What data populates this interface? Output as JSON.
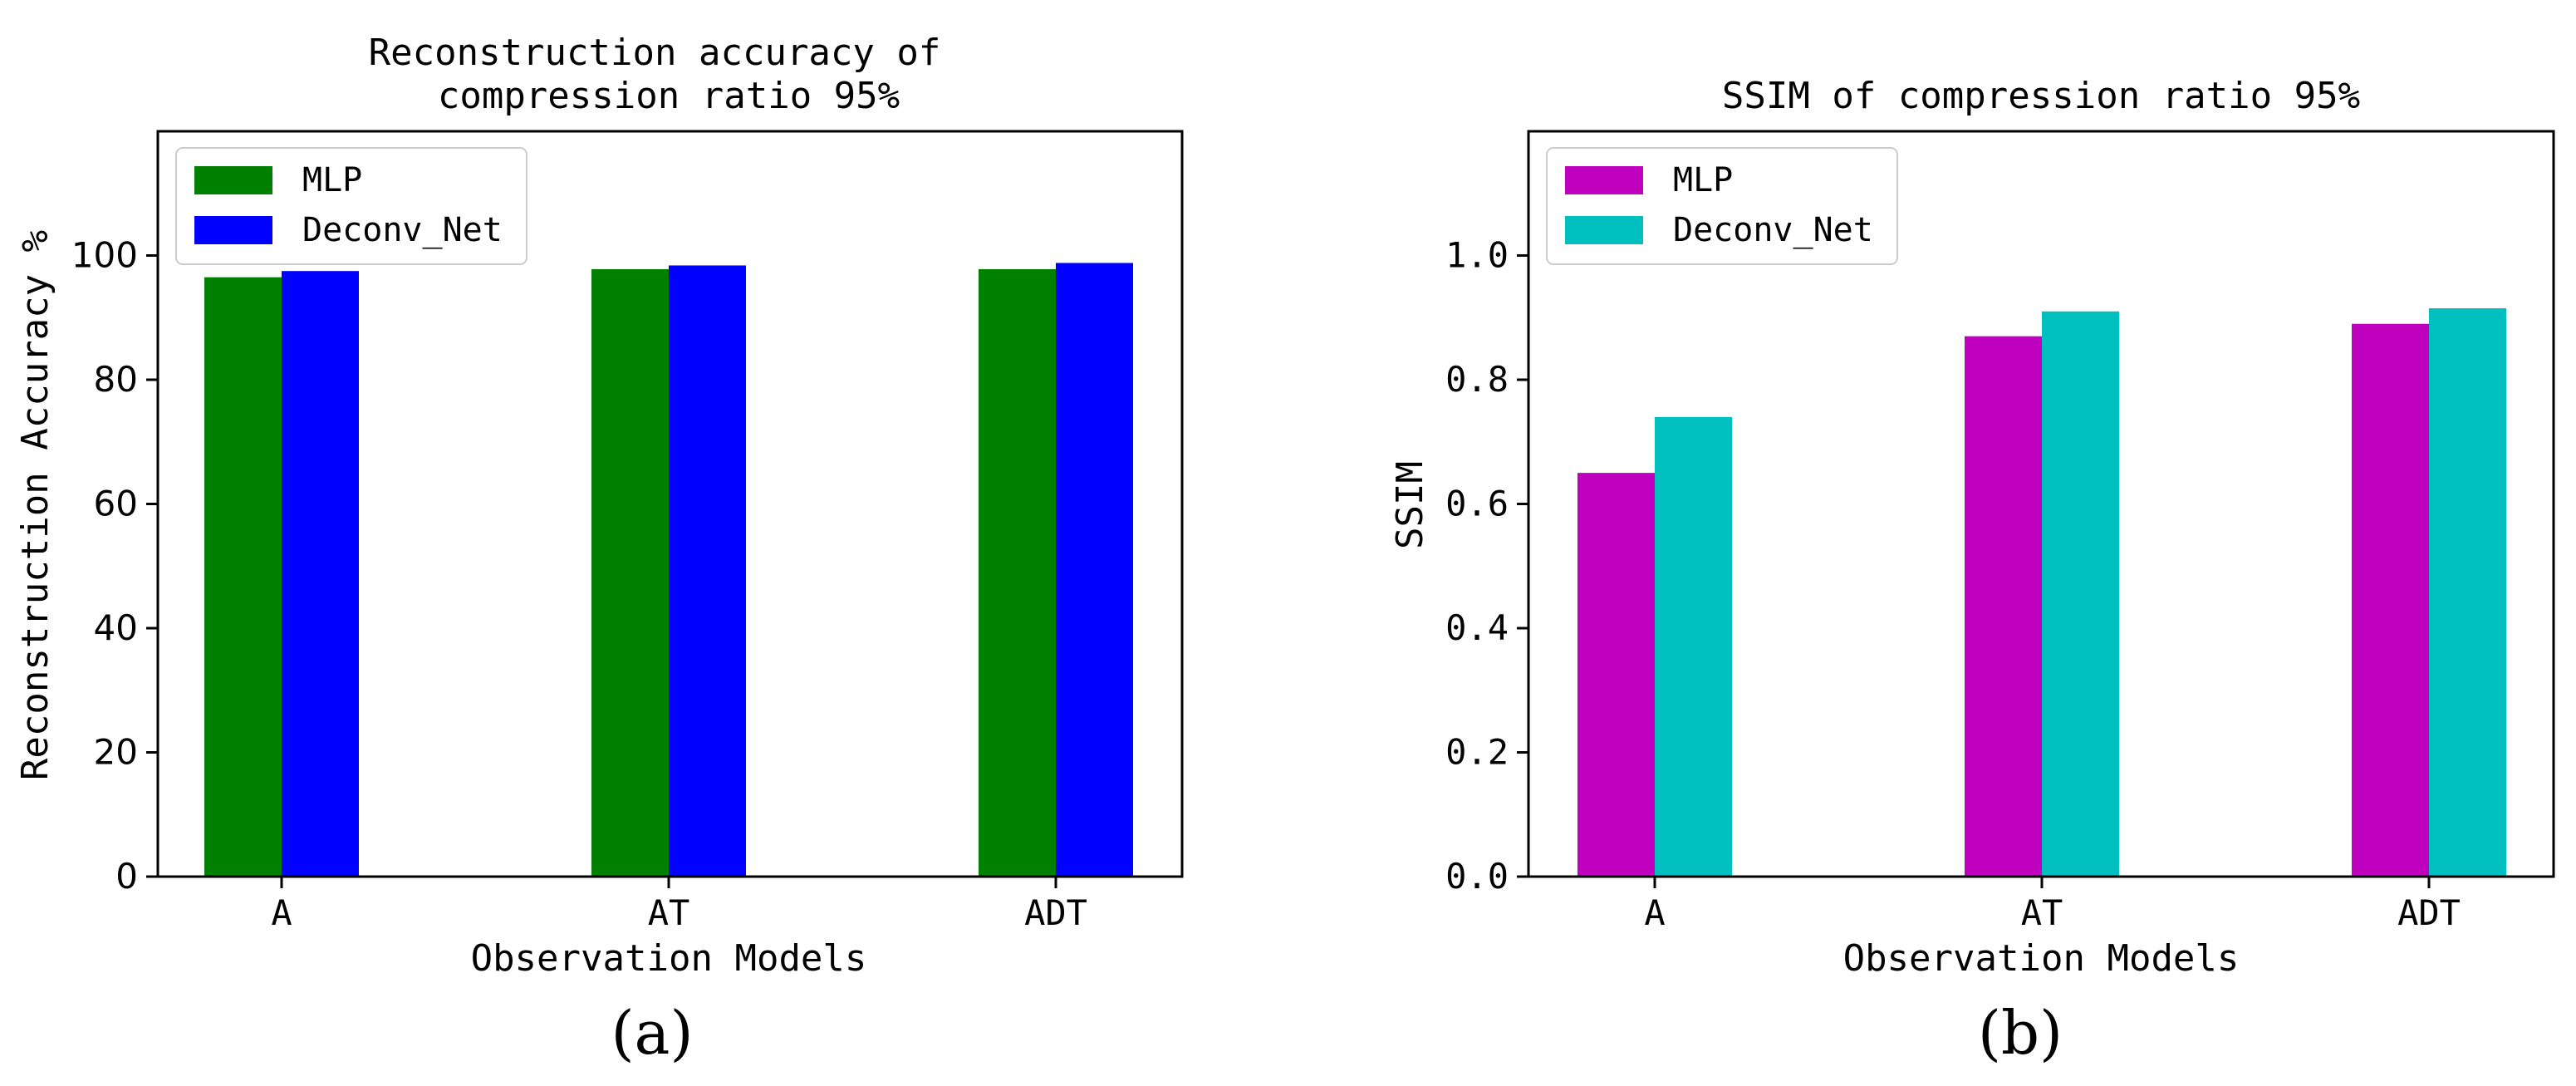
{
  "chart_data": [
    {
      "type": "bar",
      "title_lines": [
        "Reconstruction accuracy of",
        "compression ratio 95%"
      ],
      "xlabel": "Observation Models",
      "ylabel": "Reconstruction Accuracy %",
      "categories": [
        "A",
        "AT",
        "ADT"
      ],
      "series": [
        {
          "name": "MLP",
          "color": "#008000",
          "values": [
            96.5,
            97.8,
            97.8
          ]
        },
        {
          "name": "Deconv_Net",
          "color": "#0000ff",
          "values": [
            97.5,
            98.4,
            98.8
          ]
        }
      ],
      "ylim": [
        0,
        120
      ],
      "yticks": [
        0,
        20,
        40,
        60,
        80,
        100
      ],
      "ytick_labels": [
        "0",
        "20",
        "40",
        "60",
        "80",
        "100"
      ],
      "legend": "upper-left",
      "grid": false,
      "panel_label": "(a)"
    },
    {
      "type": "bar",
      "title_lines": [
        "SSIM of compression ratio 95%"
      ],
      "xlabel": "Observation Models",
      "ylabel": "SSIM",
      "categories": [
        "A",
        "AT",
        "ADT"
      ],
      "series": [
        {
          "name": "MLP",
          "color": "#bf00bf",
          "values": [
            0.65,
            0.87,
            0.89
          ]
        },
        {
          "name": "Deconv_Net",
          "color": "#00bfbf",
          "values": [
            0.74,
            0.91,
            0.915
          ]
        }
      ],
      "ylim": [
        0,
        1.2
      ],
      "yticks": [
        0,
        0.2,
        0.4,
        0.6,
        0.8,
        1.0
      ],
      "ytick_labels": [
        "0.0",
        "0.2",
        "0.4",
        "0.6",
        "0.8",
        "1.0"
      ],
      "legend": "upper-left",
      "grid": false,
      "panel_label": "(b)"
    }
  ]
}
